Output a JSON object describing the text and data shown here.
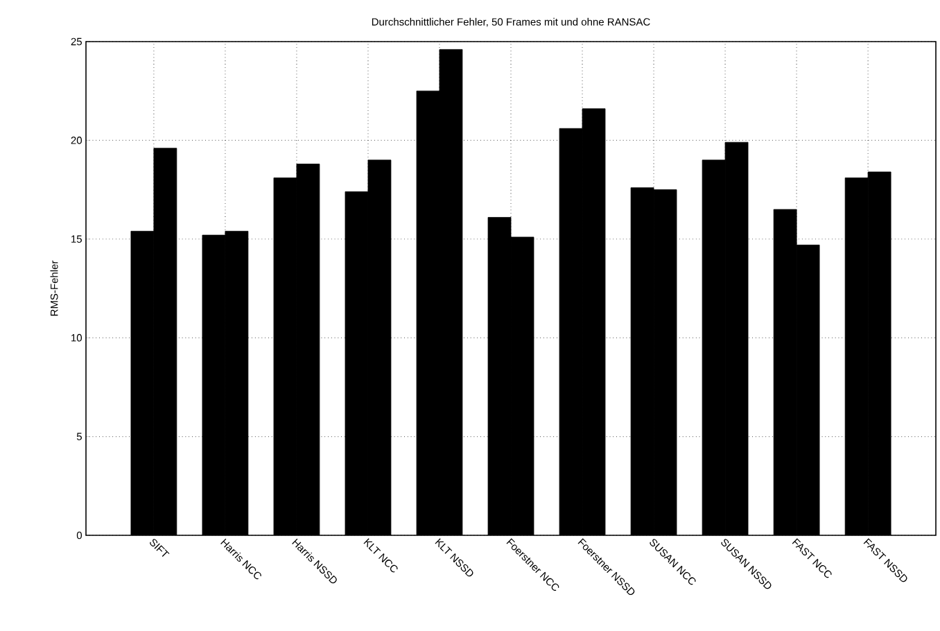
{
  "chart_data": {
    "type": "bar",
    "title": "Durchschnittlicher Fehler, 50 Frames mit und ohne RANSAC",
    "ylabel": "RMS-Fehler",
    "categories": [
      "SIFT",
      "Harris NCC",
      "Harris NSSD",
      "KLT NCC",
      "KLT NSSD",
      "Foerstner NCC",
      "Foerstner NSSD",
      "SUSAN NCC",
      "SUSAN NSSD",
      "FAST NCC",
      "FAST NSSD"
    ],
    "series": [
      {
        "color": "#000000",
        "values": [
          15.4,
          15.2,
          18.1,
          17.4,
          22.5,
          16.1,
          20.6,
          17.6,
          19.0,
          16.5,
          18.1
        ]
      },
      {
        "color": "#000000",
        "values": [
          19.6,
          15.4,
          18.8,
          19.0,
          24.6,
          15.1,
          21.6,
          17.5,
          19.9,
          14.7,
          18.4
        ]
      }
    ],
    "ylim": [
      0,
      25
    ],
    "yticks": [
      0,
      5,
      10,
      15,
      20,
      25
    ],
    "grid": true
  }
}
